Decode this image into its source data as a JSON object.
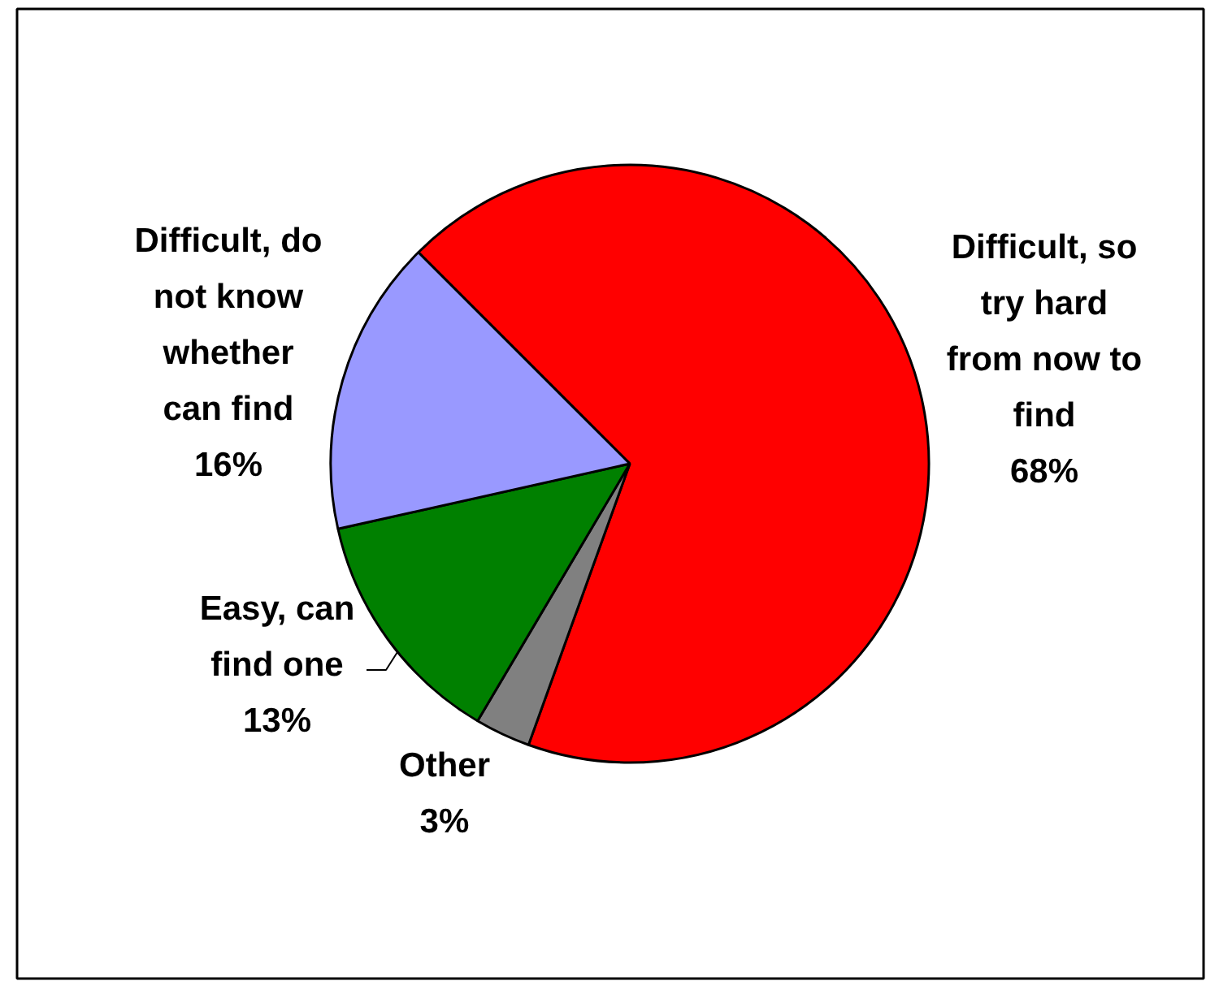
{
  "chart_data": {
    "type": "pie",
    "categories": [
      "Difficult, so try hard from now to find",
      "Other",
      "Easy, can find one",
      "Difficult, do not know whether can find"
    ],
    "values": [
      68,
      3,
      13,
      16
    ],
    "colors": [
      "#ff0000",
      "#808080",
      "#008000",
      "#9999ff"
    ],
    "value_labels": [
      "68%",
      "3%",
      "13%",
      "16%"
    ]
  }
}
